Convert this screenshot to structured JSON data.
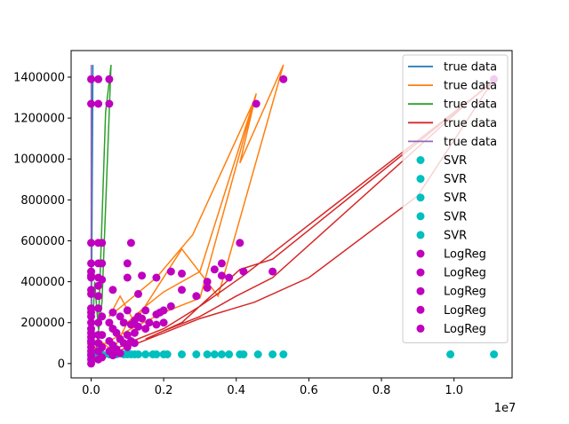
{
  "chart_data": {
    "type": "scatter",
    "title": "",
    "xlabel": "",
    "ylabel": "",
    "x_offset_label": "1e7",
    "xlim": [
      -0.055,
      1.16
    ],
    "ylim": [
      -70000,
      1530000
    ],
    "x_scale_note": "x values in units of 1e7",
    "x_ticks": [
      {
        "value": 0.0,
        "label": "0.0"
      },
      {
        "value": 0.2,
        "label": "0.2"
      },
      {
        "value": 0.4,
        "label": "0.4"
      },
      {
        "value": 0.6,
        "label": "0.6"
      },
      {
        "value": 0.8,
        "label": "0.8"
      },
      {
        "value": 1.0,
        "label": "1.0"
      }
    ],
    "y_ticks": [
      {
        "value": 0,
        "label": "0"
      },
      {
        "value": 200000,
        "label": "200000"
      },
      {
        "value": 400000,
        "label": "400000"
      },
      {
        "value": 600000,
        "label": "600000"
      },
      {
        "value": 800000,
        "label": "800000"
      },
      {
        "value": 1000000,
        "label": "1000000"
      },
      {
        "value": 1200000,
        "label": "1200000"
      },
      {
        "value": 1400000,
        "label": "1400000"
      }
    ],
    "grid": false,
    "legend_position": "top-right",
    "legend": [
      {
        "label": "true data",
        "kind": "line",
        "color": "#1f77b4"
      },
      {
        "label": "true data",
        "kind": "line",
        "color": "#ff7f0e"
      },
      {
        "label": "true data",
        "kind": "line",
        "color": "#2ca02c"
      },
      {
        "label": "true data",
        "kind": "line",
        "color": "#d62728"
      },
      {
        "label": "true data",
        "kind": "line",
        "color": "#9467bd"
      },
      {
        "label": "SVR",
        "kind": "marker",
        "color": "#00bfbf"
      },
      {
        "label": "SVR",
        "kind": "marker",
        "color": "#00bfbf"
      },
      {
        "label": "SVR",
        "kind": "marker",
        "color": "#00bfbf"
      },
      {
        "label": "SVR",
        "kind": "marker",
        "color": "#00bfbf"
      },
      {
        "label": "SVR",
        "kind": "marker",
        "color": "#00bfbf"
      },
      {
        "label": "LogReg",
        "kind": "marker",
        "color": "#bf00bf"
      },
      {
        "label": "LogReg",
        "kind": "marker",
        "color": "#bf00bf"
      },
      {
        "label": "LogReg",
        "kind": "marker",
        "color": "#bf00bf"
      },
      {
        "label": "LogReg",
        "kind": "marker",
        "color": "#bf00bf"
      },
      {
        "label": "LogReg",
        "kind": "marker",
        "color": "#bf00bf"
      }
    ],
    "line_series": [
      {
        "name": "true data",
        "color": "#1f77b4",
        "points": [
          [
            0.0,
            0
          ],
          [
            0.003,
            1270000
          ],
          [
            0.0008,
            90000
          ],
          [
            0.004,
            1380000
          ],
          [
            0.001,
            240000
          ],
          [
            0.005,
            1460000
          ],
          [
            0.0,
            30000
          ]
        ]
      },
      {
        "name": "true data",
        "color": "#ff7f0e",
        "points": [
          [
            0.0,
            0
          ],
          [
            0.02,
            120000
          ],
          [
            0.06,
            60000
          ],
          [
            0.1,
            200000
          ],
          [
            0.15,
            280000
          ],
          [
            0.2,
            350000
          ],
          [
            0.3,
            450000
          ],
          [
            0.455,
            1320000
          ],
          [
            0.41,
            980000
          ],
          [
            0.53,
            1460000
          ],
          [
            0.35,
            330000
          ],
          [
            0.25,
            560000
          ],
          [
            0.12,
            200000
          ],
          [
            0.08,
            330000
          ],
          [
            0.05,
            230000
          ],
          [
            0.18,
            420000
          ],
          [
            0.28,
            630000
          ],
          [
            0.45,
            1290000
          ],
          [
            0.3,
            320000
          ],
          [
            0.2,
            250000
          ],
          [
            0.1,
            160000
          ],
          [
            0.03,
            90000
          ],
          [
            0.0,
            20000
          ]
        ]
      },
      {
        "name": "true data",
        "color": "#2ca02c",
        "points": [
          [
            0.0,
            0
          ],
          [
            0.01,
            400000
          ],
          [
            0.02,
            170000
          ],
          [
            0.04,
            1230000
          ],
          [
            0.05,
            1380000
          ],
          [
            0.055,
            1460000
          ],
          [
            0.03,
            300000
          ],
          [
            0.015,
            80000
          ],
          [
            0.0,
            10000
          ]
        ]
      },
      {
        "name": "true data",
        "color": "#d62728",
        "points": [
          [
            0.0,
            0
          ],
          [
            0.1,
            80000
          ],
          [
            0.2,
            150000
          ],
          [
            0.3,
            220000
          ],
          [
            0.45,
            300000
          ],
          [
            0.6,
            420000
          ],
          [
            0.9,
            820000
          ],
          [
            1.11,
            1390000
          ],
          [
            0.5,
            420000
          ],
          [
            0.4,
            330000
          ],
          [
            0.3,
            230000
          ],
          [
            0.2,
            160000
          ],
          [
            0.15,
            120000
          ],
          [
            0.25,
            200000
          ],
          [
            0.41,
            460000
          ],
          [
            0.5,
            510000
          ],
          [
            1.11,
            1380000
          ],
          [
            0.42,
            430000
          ],
          [
            0.3,
            280000
          ],
          [
            0.2,
            170000
          ],
          [
            0.1,
            100000
          ],
          [
            0.0,
            10000
          ]
        ]
      },
      {
        "name": "true data",
        "color": "#9467bd",
        "points": [
          [
            0.0,
            0
          ],
          [
            0.0004,
            1460000
          ],
          [
            0.0001,
            320000
          ],
          [
            0.0008,
            1270000
          ],
          [
            0.0,
            40000
          ]
        ]
      }
    ],
    "scatter_series": [
      {
        "name": "SVR",
        "color": "#00bfbf",
        "points": [
          [
            0.0,
            45000
          ],
          [
            0.01,
            45000
          ],
          [
            0.02,
            45000
          ],
          [
            0.03,
            45000
          ],
          [
            0.05,
            45000
          ],
          [
            0.07,
            45000
          ],
          [
            0.09,
            45000
          ],
          [
            0.1,
            45000
          ],
          [
            0.11,
            45000
          ],
          [
            0.12,
            45000
          ],
          [
            0.13,
            45000
          ],
          [
            0.15,
            45000
          ],
          [
            0.17,
            45000
          ],
          [
            0.18,
            45000
          ],
          [
            0.2,
            45000
          ],
          [
            0.21,
            45000
          ],
          [
            0.25,
            45000
          ],
          [
            0.29,
            45000
          ],
          [
            0.32,
            45000
          ],
          [
            0.34,
            45000
          ],
          [
            0.36,
            45000
          ],
          [
            0.38,
            45000
          ],
          [
            0.41,
            45000
          ],
          [
            0.42,
            45000
          ],
          [
            0.46,
            45000
          ],
          [
            0.5,
            45000
          ],
          [
            0.53,
            45000
          ],
          [
            0.99,
            45000
          ],
          [
            1.11,
            45000
          ]
        ]
      },
      {
        "name": "LogReg",
        "color": "#bf00bf",
        "points": [
          [
            0.0,
            1390000
          ],
          [
            0.0,
            1270000
          ],
          [
            0.0,
            590000
          ],
          [
            0.0,
            490000
          ],
          [
            0.0,
            450000
          ],
          [
            0.0,
            430000
          ],
          [
            0.0,
            420000
          ],
          [
            0.0,
            360000
          ],
          [
            0.0,
            340000
          ],
          [
            0.0,
            270000
          ],
          [
            0.0,
            250000
          ],
          [
            0.0,
            230000
          ],
          [
            0.0,
            200000
          ],
          [
            0.0,
            170000
          ],
          [
            0.0,
            150000
          ],
          [
            0.0,
            130000
          ],
          [
            0.0,
            110000
          ],
          [
            0.0,
            100000
          ],
          [
            0.0,
            80000
          ],
          [
            0.0,
            60000
          ],
          [
            0.0,
            40000
          ],
          [
            0.0,
            20000
          ],
          [
            0.0,
            0
          ],
          [
            0.02,
            1390000
          ],
          [
            0.02,
            1270000
          ],
          [
            0.02,
            590000
          ],
          [
            0.02,
            490000
          ],
          [
            0.02,
            420000
          ],
          [
            0.02,
            380000
          ],
          [
            0.02,
            330000
          ],
          [
            0.02,
            270000
          ],
          [
            0.02,
            200000
          ],
          [
            0.02,
            140000
          ],
          [
            0.02,
            100000
          ],
          [
            0.02,
            60000
          ],
          [
            0.02,
            20000
          ],
          [
            0.03,
            590000
          ],
          [
            0.03,
            490000
          ],
          [
            0.03,
            410000
          ],
          [
            0.03,
            230000
          ],
          [
            0.03,
            140000
          ],
          [
            0.03,
            80000
          ],
          [
            0.03,
            30000
          ],
          [
            0.05,
            1390000
          ],
          [
            0.05,
            1270000
          ],
          [
            0.05,
            200000
          ],
          [
            0.05,
            110000
          ],
          [
            0.05,
            60000
          ],
          [
            0.06,
            360000
          ],
          [
            0.06,
            250000
          ],
          [
            0.06,
            170000
          ],
          [
            0.06,
            90000
          ],
          [
            0.06,
            40000
          ],
          [
            0.07,
            150000
          ],
          [
            0.07,
            70000
          ],
          [
            0.08,
            230000
          ],
          [
            0.08,
            120000
          ],
          [
            0.08,
            50000
          ],
          [
            0.09,
            200000
          ],
          [
            0.09,
            100000
          ],
          [
            0.1,
            260000
          ],
          [
            0.1,
            490000
          ],
          [
            0.1,
            420000
          ],
          [
            0.1,
            140000
          ],
          [
            0.1,
            80000
          ],
          [
            0.11,
            590000
          ],
          [
            0.11,
            190000
          ],
          [
            0.11,
            110000
          ],
          [
            0.12,
            210000
          ],
          [
            0.12,
            150000
          ],
          [
            0.12,
            100000
          ],
          [
            0.13,
            340000
          ],
          [
            0.13,
            230000
          ],
          [
            0.13,
            180000
          ],
          [
            0.14,
            430000
          ],
          [
            0.14,
            220000
          ],
          [
            0.15,
            260000
          ],
          [
            0.15,
            170000
          ],
          [
            0.16,
            200000
          ],
          [
            0.18,
            420000
          ],
          [
            0.18,
            240000
          ],
          [
            0.18,
            190000
          ],
          [
            0.19,
            250000
          ],
          [
            0.2,
            260000
          ],
          [
            0.2,
            200000
          ],
          [
            0.22,
            450000
          ],
          [
            0.22,
            280000
          ],
          [
            0.25,
            440000
          ],
          [
            0.25,
            360000
          ],
          [
            0.29,
            330000
          ],
          [
            0.32,
            400000
          ],
          [
            0.32,
            370000
          ],
          [
            0.34,
            460000
          ],
          [
            0.36,
            490000
          ],
          [
            0.36,
            430000
          ],
          [
            0.38,
            420000
          ],
          [
            0.41,
            590000
          ],
          [
            0.42,
            450000
          ],
          [
            0.455,
            1270000
          ],
          [
            0.5,
            450000
          ],
          [
            0.53,
            1390000
          ],
          [
            1.11,
            1390000
          ]
        ]
      }
    ]
  }
}
